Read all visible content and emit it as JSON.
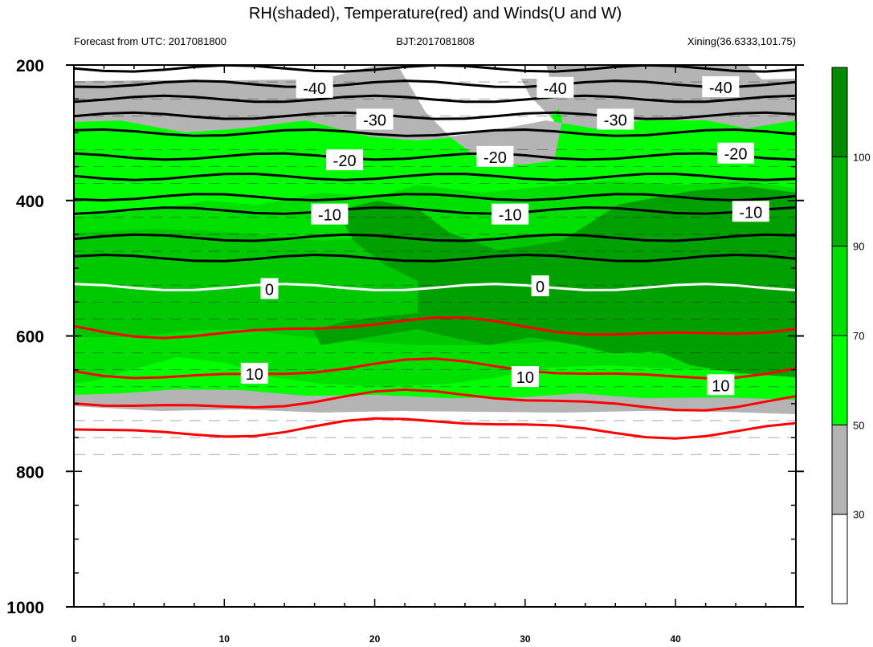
{
  "chart_data": {
    "type": "heatmap",
    "title": "RH(shaded), Temperature(red) and Winds(U and W)",
    "subtitles": {
      "left": "Forecast from UTC: 2017081800",
      "center": "BJT:2017081808",
      "right": "Xining(36.6333,101.75)"
    },
    "x_ticks": [
      0,
      10,
      20,
      30,
      40
    ],
    "xlim": [
      0,
      48
    ],
    "y_ticks": [
      200,
      400,
      600,
      800,
      1000
    ],
    "ylim": [
      200,
      1000
    ],
    "y_inverted": true,
    "colorbar": {
      "levels": [
        30,
        50,
        70,
        90,
        100
      ],
      "colors": [
        "#ffffff",
        "#b4b4b4",
        "#00ff00",
        "#00e000",
        "#00b400",
        "#008c00"
      ]
    },
    "isotherm_labels": [
      {
        "text": "-40",
        "x": 16,
        "y": 233
      },
      {
        "text": "-40",
        "x": 32,
        "y": 233
      },
      {
        "text": "-40",
        "x": 43,
        "y": 232
      },
      {
        "text": "-30",
        "x": 20,
        "y": 280
      },
      {
        "text": "-30",
        "x": 36,
        "y": 280
      },
      {
        "text": "-20",
        "x": 18,
        "y": 340
      },
      {
        "text": "-20",
        "x": 28,
        "y": 335
      },
      {
        "text": "-20",
        "x": 44,
        "y": 330
      },
      {
        "text": "-10",
        "x": 17,
        "y": 420
      },
      {
        "text": "-10",
        "x": 29,
        "y": 420
      },
      {
        "text": "-10",
        "x": 45,
        "y": 416
      },
      {
        "text": "0",
        "x": 13,
        "y": 530
      },
      {
        "text": "0",
        "x": 31,
        "y": 526
      },
      {
        "text": "10",
        "x": 12,
        "y": 655
      },
      {
        "text": "10",
        "x": 30,
        "y": 660
      },
      {
        "text": "10",
        "x": 43,
        "y": 672
      }
    ]
  }
}
